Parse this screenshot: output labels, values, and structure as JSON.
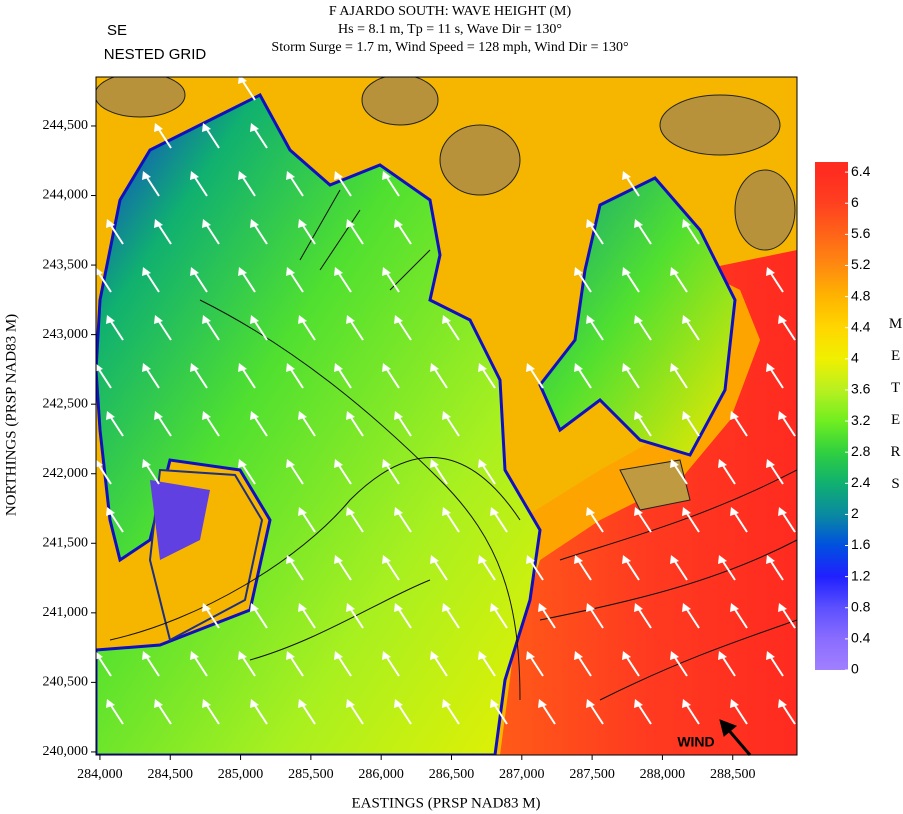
{
  "chart_data": {
    "type": "contour",
    "title": "F AJARDO SOUTH: WAVE HEIGHT (M)",
    "subtitle_lines": [
      "Hs = 8.1 m, Tp = 11 s, Wave Dir = 130°",
      "Storm Surge = 1.7 m, Wind Speed = 128 mph, Wind Dir = 130°"
    ],
    "label": [
      "SE",
      "NESTED GRID"
    ],
    "x_label": "EASTINGS (PRSP NAD83 M)",
    "y_label": "NORTHINGS (PRSP NAD83 M)",
    "xlim": [
      283972,
      288957
    ],
    "xticks": [
      {
        "value": 284000,
        "label": "284,000"
      },
      {
        "value": 284500,
        "label": "284,500"
      },
      {
        "value": 285000,
        "label": "285,000"
      },
      {
        "value": 285500,
        "label": "285,500"
      },
      {
        "value": 286000,
        "label": "286,000"
      },
      {
        "value": 286500,
        "label": "286,500"
      },
      {
        "value": 287000,
        "label": "287,000"
      },
      {
        "value": 287500,
        "label": "287,500"
      },
      {
        "value": 288000,
        "label": "288,000"
      },
      {
        "value": 288500,
        "label": "288,500"
      }
    ],
    "ylim": [
      239978,
      244852
    ],
    "yticks": [
      {
        "value": 240000,
        "label": "240,000"
      },
      {
        "value": 240500,
        "label": "240,500"
      },
      {
        "value": 241000,
        "label": "241,000"
      },
      {
        "value": 241500,
        "label": "241,500"
      },
      {
        "value": 242000,
        "label": "242,000"
      },
      {
        "value": 242500,
        "label": "242,500"
      },
      {
        "value": 243000,
        "label": "243,000"
      },
      {
        "value": 243500,
        "label": "243,500"
      },
      {
        "value": 244000,
        "label": "244,000"
      },
      {
        "value": 244500,
        "label": "244,500"
      }
    ],
    "colorbar": {
      "label": "METERS",
      "lim": [
        0,
        6.53
      ],
      "ticks": [
        0,
        0.4,
        0.8,
        1.2,
        1.6,
        2,
        2.4,
        2.8,
        3.2,
        3.6,
        4,
        4.4,
        4.8,
        5.2,
        5.6,
        6,
        6.4
      ],
      "colors": [
        "#a080ff",
        "#8a6cff",
        "#5c50ff",
        "#2020ff",
        "#0050e0",
        "#0a8aa0",
        "#10b070",
        "#30d040",
        "#70ee20",
        "#b8f020",
        "#f0f000",
        "#ffd600",
        "#ffb400",
        "#ff8a10",
        "#ff6418",
        "#ff4020",
        "#ff2c20"
      ]
    },
    "annotation": "WIND"
  }
}
